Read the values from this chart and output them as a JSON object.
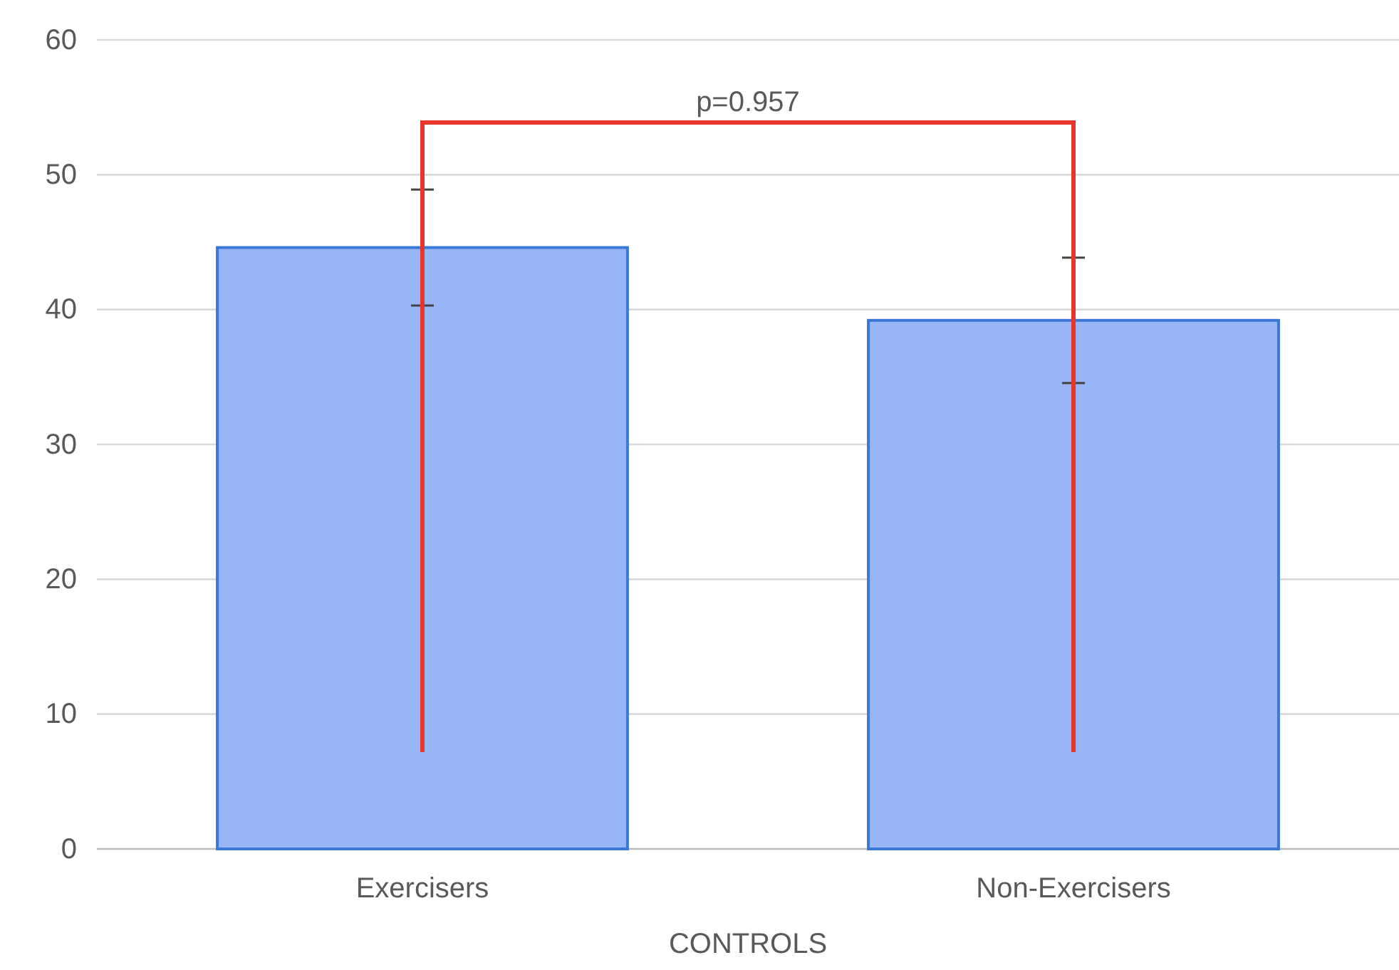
{
  "chart_data": {
    "type": "bar",
    "xlabel": "CONTROLS",
    "categories": [
      "Exercisers",
      "Non-Exercisers"
    ],
    "values": [
      44.6,
      39.2
    ],
    "errors": [
      4.3,
      4.65
    ],
    "color": "#98b6f7",
    "ylim": [
      0,
      60
    ],
    "yticks": [
      0,
      10,
      20,
      30,
      40,
      50,
      60
    ],
    "grid": "y",
    "annotations": [
      "p=0.957"
    ]
  }
}
